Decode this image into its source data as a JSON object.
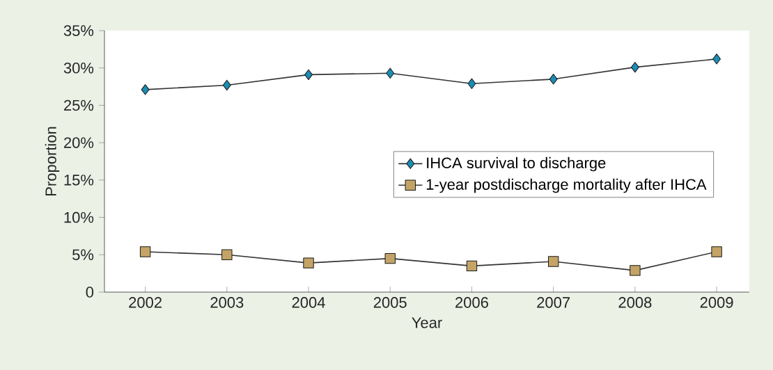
{
  "chart_data": {
    "type": "line",
    "xlabel": "Year",
    "ylabel": "Proportion",
    "x": [
      2002,
      2003,
      2004,
      2005,
      2006,
      2007,
      2008,
      2009
    ],
    "series": [
      {
        "name": "IHCA survival to discharge",
        "color": "#1b8db5",
        "marker": "diamond",
        "values": [
          27.1,
          27.7,
          29.1,
          29.3,
          27.9,
          28.5,
          30.1,
          31.2
        ]
      },
      {
        "name": "1-year postdischarge mortality after IHCA",
        "color": "#c4a466",
        "marker": "square",
        "values": [
          5.4,
          5.0,
          3.9,
          4.5,
          3.5,
          4.1,
          2.9,
          5.4
        ]
      }
    ],
    "xlim": [
      2001.5,
      2009.4
    ],
    "xticks": [
      2002,
      2003,
      2004,
      2005,
      2006,
      2007,
      2008,
      2009
    ],
    "ylim": [
      0,
      35
    ],
    "yticks": [
      {
        "value": 0,
        "label": "0"
      },
      {
        "value": 5,
        "label": "5%"
      },
      {
        "value": 10,
        "label": "10%"
      },
      {
        "value": 15,
        "label": "15%"
      },
      {
        "value": 20,
        "label": "20%"
      },
      {
        "value": 25,
        "label": "25%"
      },
      {
        "value": 30,
        "label": "30%"
      },
      {
        "value": 35,
        "label": "35%"
      }
    ],
    "legend": "right",
    "grid": false
  }
}
